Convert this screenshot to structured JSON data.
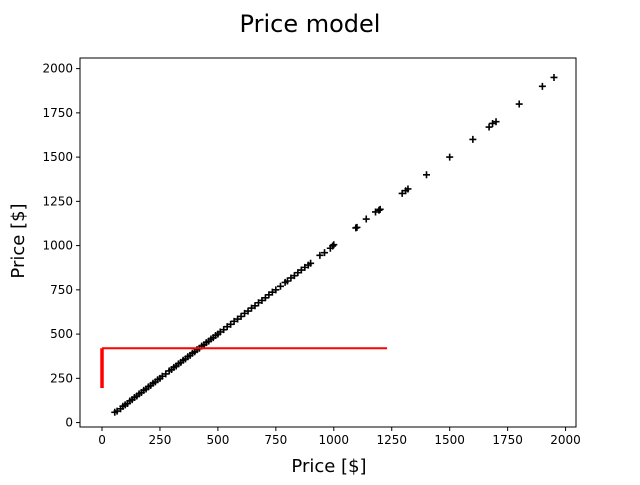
{
  "chart_data": {
    "type": "scatter",
    "title": "Price model",
    "xlabel": "Price [$]",
    "ylabel": "Price [$]",
    "xlim": [
      -95,
      2045
    ],
    "ylim": [
      -25,
      2060
    ],
    "xticks": [
      0,
      250,
      500,
      750,
      1000,
      1250,
      1500,
      1750,
      2000
    ],
    "yticks": [
      0,
      250,
      500,
      750,
      1000,
      1250,
      1500,
      1750,
      2000
    ],
    "grid": false,
    "legend": "none",
    "series": [
      {
        "marker": "plus",
        "color": "#000000",
        "points": [
          [
            55,
            58
          ],
          [
            65,
            65
          ],
          [
            80,
            78
          ],
          [
            90,
            92
          ],
          [
            100,
            100
          ],
          [
            110,
            108
          ],
          [
            120,
            122
          ],
          [
            130,
            130
          ],
          [
            140,
            142
          ],
          [
            150,
            150
          ],
          [
            160,
            162
          ],
          [
            170,
            170
          ],
          [
            180,
            182
          ],
          [
            190,
            190
          ],
          [
            200,
            202
          ],
          [
            210,
            210
          ],
          [
            220,
            222
          ],
          [
            230,
            230
          ],
          [
            240,
            242
          ],
          [
            250,
            250
          ],
          [
            260,
            262
          ],
          [
            275,
            275
          ],
          [
            290,
            292
          ],
          [
            300,
            300
          ],
          [
            310,
            312
          ],
          [
            320,
            320
          ],
          [
            330,
            332
          ],
          [
            340,
            340
          ],
          [
            350,
            352
          ],
          [
            360,
            360
          ],
          [
            370,
            372
          ],
          [
            380,
            380
          ],
          [
            390,
            392
          ],
          [
            400,
            400
          ],
          [
            410,
            412
          ],
          [
            420,
            420
          ],
          [
            430,
            432
          ],
          [
            440,
            440
          ],
          [
            450,
            452
          ],
          [
            460,
            460
          ],
          [
            470,
            472
          ],
          [
            480,
            480
          ],
          [
            490,
            492
          ],
          [
            500,
            500
          ],
          [
            510,
            512
          ],
          [
            525,
            525
          ],
          [
            540,
            542
          ],
          [
            555,
            555
          ],
          [
            570,
            572
          ],
          [
            585,
            585
          ],
          [
            600,
            600
          ],
          [
            615,
            617
          ],
          [
            630,
            630
          ],
          [
            645,
            647
          ],
          [
            660,
            660
          ],
          [
            675,
            677
          ],
          [
            690,
            690
          ],
          [
            705,
            705
          ],
          [
            720,
            722
          ],
          [
            735,
            737
          ],
          [
            750,
            750
          ],
          [
            770,
            770
          ],
          [
            790,
            792
          ],
          [
            800,
            800
          ],
          [
            815,
            817
          ],
          [
            830,
            830
          ],
          [
            845,
            847
          ],
          [
            860,
            862
          ],
          [
            875,
            877
          ],
          [
            890,
            890
          ],
          [
            900,
            900
          ],
          [
            940,
            945
          ],
          [
            960,
            960
          ],
          [
            985,
            985
          ],
          [
            995,
            998
          ],
          [
            1000,
            1005
          ],
          [
            1095,
            1100
          ],
          [
            1100,
            1103
          ],
          [
            1140,
            1150
          ],
          [
            1180,
            1190
          ],
          [
            1195,
            1200
          ],
          [
            1200,
            1205
          ],
          [
            1295,
            1295
          ],
          [
            1310,
            1310
          ],
          [
            1320,
            1320
          ],
          [
            1400,
            1400
          ],
          [
            1500,
            1500
          ],
          [
            1600,
            1600
          ],
          [
            1670,
            1670
          ],
          [
            1685,
            1690
          ],
          [
            1700,
            1700
          ],
          [
            1800,
            1800
          ],
          [
            1900,
            1900
          ],
          [
            1950,
            1950
          ]
        ]
      },
      {
        "marker": "line",
        "color": "#ff0000",
        "segments": [
          [
            [
              0,
              420
            ],
            [
              1230,
              420
            ]
          ],
          [
            [
              0,
              420
            ],
            [
              0,
              195
            ]
          ]
        ]
      }
    ]
  }
}
